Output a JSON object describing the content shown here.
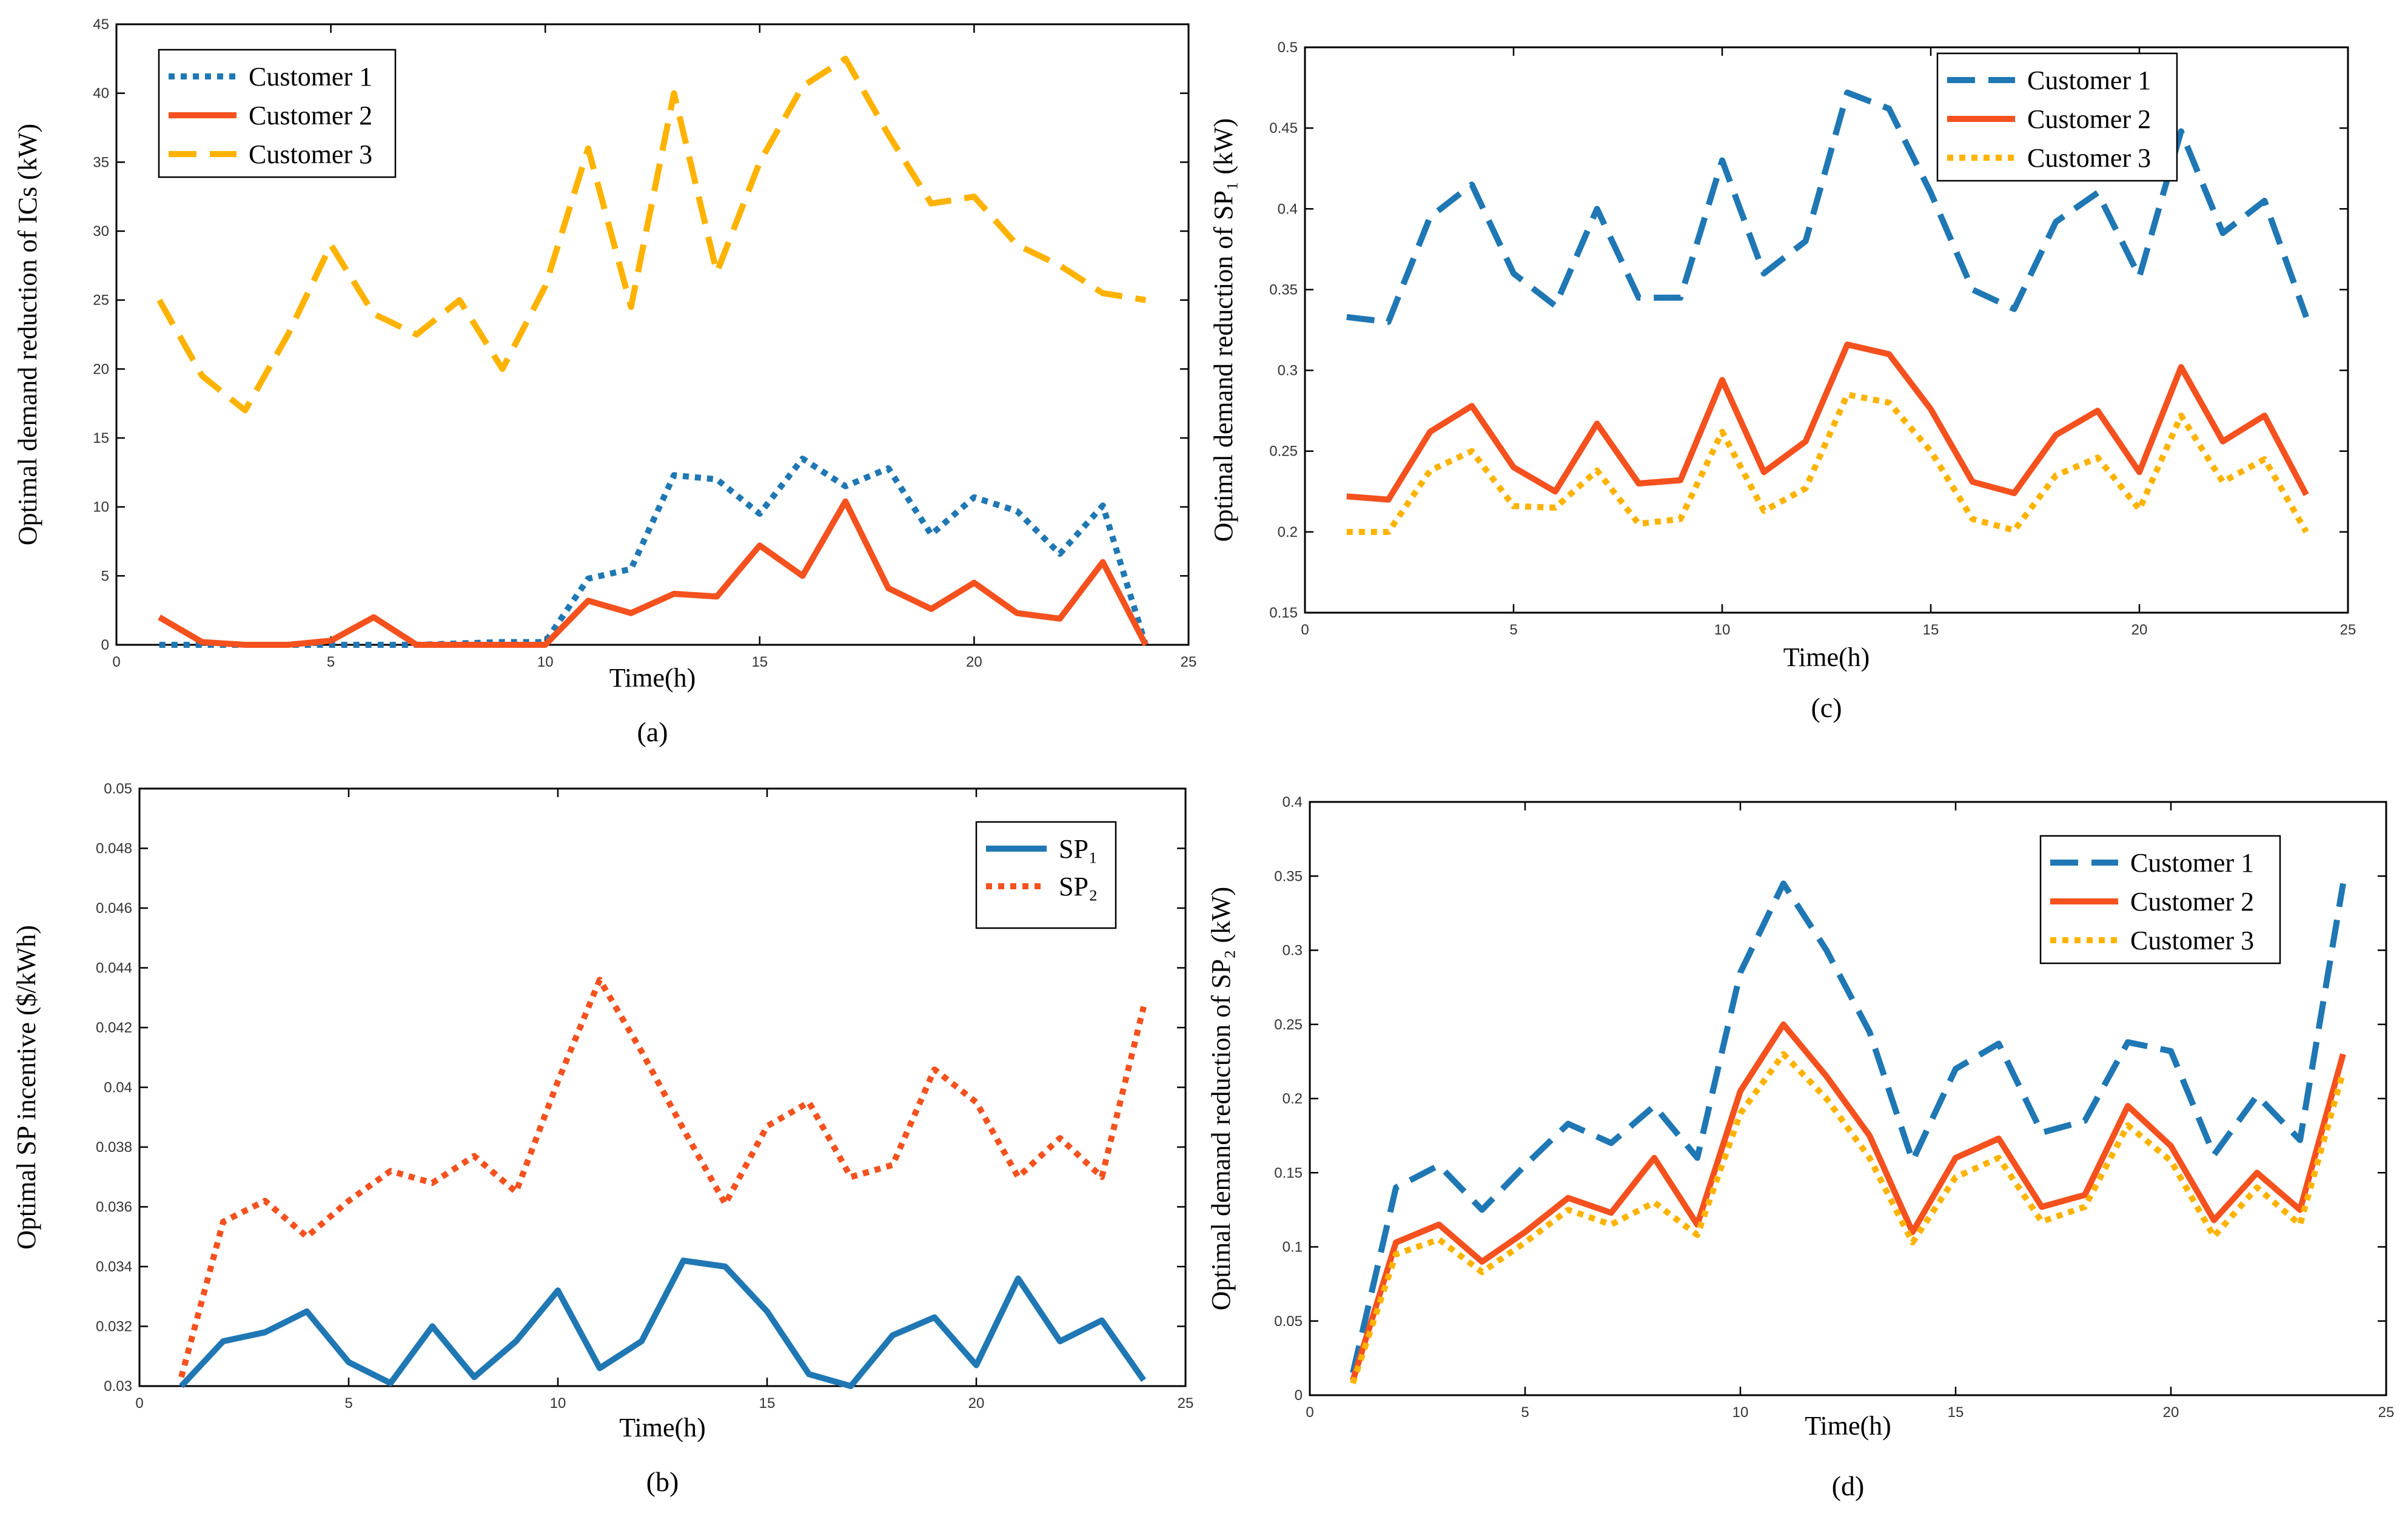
{
  "chart_data": [
    {
      "id": "a",
      "type": "line",
      "caption": "(a)",
      "xlabel": "Time(h)",
      "ylabel": "Optimal demand reduction of ICs (kW)",
      "xlim": [
        0,
        25
      ],
      "ylim": [
        0,
        45
      ],
      "xticks": [
        0,
        5,
        10,
        15,
        20,
        25
      ],
      "yticks": [
        0,
        5,
        10,
        15,
        20,
        25,
        30,
        35,
        40,
        45
      ],
      "legend_position": "top-left",
      "x": [
        1,
        2,
        3,
        4,
        5,
        6,
        7,
        8,
        9,
        10,
        11,
        12,
        13,
        14,
        15,
        16,
        17,
        18,
        19,
        20,
        21,
        22,
        23,
        24
      ],
      "series": [
        {
          "name": "Customer 1",
          "color": "#1f77b4",
          "dash": "dotted",
          "values": [
            0,
            0,
            0,
            0,
            0,
            0,
            0,
            0.1,
            0.2,
            0.2,
            4.8,
            5.5,
            12.3,
            12.0,
            9.5,
            13.5,
            11.5,
            12.8,
            8.0,
            10.7,
            9.7,
            6.6,
            10.1,
            0
          ]
        },
        {
          "name": "Customer 2",
          "color": "#f4511e",
          "dash": "solid",
          "values": [
            2.0,
            0.2,
            0,
            0,
            0.3,
            2.0,
            0,
            0,
            0,
            0,
            3.2,
            2.3,
            3.7,
            3.5,
            7.2,
            5.0,
            10.4,
            4.1,
            2.6,
            4.5,
            2.3,
            1.9,
            6.0,
            0
          ]
        },
        {
          "name": "Customer 3",
          "color": "#ffb300",
          "dash": "dashed",
          "values": [
            25,
            19.5,
            17,
            22.5,
            29,
            24,
            22.5,
            25,
            20,
            26,
            36,
            24.5,
            40,
            27,
            35,
            40.5,
            42.5,
            37,
            32,
            32.5,
            29,
            27.5,
            25.5,
            25
          ]
        }
      ]
    },
    {
      "id": "b",
      "type": "line",
      "caption": "(b)",
      "xlabel": "Time(h)",
      "ylabel": "Optimal SP incentive ($/kWh)",
      "xlim": [
        0,
        25
      ],
      "ylim": [
        0.03,
        0.05
      ],
      "xticks": [
        0,
        5,
        10,
        15,
        20,
        25
      ],
      "yticks": [
        0.03,
        0.032,
        0.034,
        0.036,
        0.038,
        0.04,
        0.042,
        0.044,
        0.046,
        0.048,
        0.05
      ],
      "ytick_labels": [
        "0.03",
        "0.032",
        "0.034",
        "0.036",
        "0.038",
        "0.04",
        "0.042",
        "0.044",
        "0.046",
        "0.048",
        "0.05"
      ],
      "legend_position": "right",
      "x": [
        1,
        2,
        3,
        4,
        5,
        6,
        7,
        8,
        9,
        10,
        11,
        12,
        13,
        14,
        15,
        16,
        17,
        18,
        19,
        20,
        21,
        22,
        23,
        24
      ],
      "series": [
        {
          "name": "SP₁",
          "color": "#1f77b4",
          "dash": "solid",
          "values": [
            0.03,
            0.0315,
            0.0318,
            0.0325,
            0.0308,
            0.0301,
            0.032,
            0.0303,
            0.0315,
            0.0332,
            0.0306,
            0.0315,
            0.0342,
            0.034,
            0.0325,
            0.0304,
            0.03,
            0.0317,
            0.0323,
            0.0307,
            0.0336,
            0.0315,
            0.0322,
            0.0302
          ]
        },
        {
          "name": "SP₂",
          "color": "#f4511e",
          "dash": "dotted",
          "values": [
            0.0303,
            0.0355,
            0.0362,
            0.035,
            0.0362,
            0.0372,
            0.0368,
            0.0377,
            0.0365,
            0.0402,
            0.0436,
            0.0412,
            0.0386,
            0.0361,
            0.0387,
            0.0395,
            0.037,
            0.0374,
            0.0406,
            0.0395,
            0.037,
            0.0383,
            0.037,
            0.0427
          ]
        }
      ]
    },
    {
      "id": "c",
      "type": "line",
      "caption": "(c)",
      "xlabel": "Time(h)",
      "ylabel": "Optimal demand reduction of SP₁ (kW)",
      "xlim": [
        0,
        25
      ],
      "ylim": [
        0.15,
        0.5
      ],
      "xticks": [
        0,
        5,
        10,
        15,
        20,
        25
      ],
      "yticks": [
        0.15,
        0.2,
        0.25,
        0.3,
        0.35,
        0.4,
        0.45,
        0.5
      ],
      "ytick_labels": [
        "0.15",
        "0.2",
        "0.25",
        "0.3",
        "0.35",
        "0.4",
        "0.45",
        "0.5"
      ],
      "legend_position": "top-right",
      "x": [
        1,
        2,
        3,
        4,
        5,
        6,
        7,
        8,
        9,
        10,
        11,
        12,
        13,
        14,
        15,
        16,
        17,
        18,
        19,
        20,
        21,
        22,
        23,
        24
      ],
      "series": [
        {
          "name": "Customer 1",
          "color": "#1f77b4",
          "dash": "dashed",
          "values": [
            0.333,
            0.33,
            0.395,
            0.415,
            0.36,
            0.34,
            0.4,
            0.345,
            0.345,
            0.43,
            0.36,
            0.38,
            0.472,
            0.462,
            0.41,
            0.35,
            0.338,
            0.392,
            0.41,
            0.358,
            0.448,
            0.385,
            0.405,
            0.333
          ]
        },
        {
          "name": "Customer 2",
          "color": "#f4511e",
          "dash": "solid",
          "values": [
            0.222,
            0.22,
            0.262,
            0.278,
            0.24,
            0.225,
            0.267,
            0.23,
            0.232,
            0.294,
            0.237,
            0.256,
            0.316,
            0.31,
            0.276,
            0.231,
            0.224,
            0.26,
            0.275,
            0.237,
            0.302,
            0.256,
            0.272,
            0.223
          ]
        },
        {
          "name": "Customer 3",
          "color": "#ffb300",
          "dash": "dotted",
          "values": [
            0.2,
            0.2,
            0.238,
            0.25,
            0.216,
            0.215,
            0.238,
            0.205,
            0.208,
            0.262,
            0.213,
            0.227,
            0.285,
            0.28,
            0.25,
            0.208,
            0.201,
            0.235,
            0.246,
            0.214,
            0.272,
            0.231,
            0.245,
            0.2
          ]
        }
      ]
    },
    {
      "id": "d",
      "type": "line",
      "caption": "(d)",
      "xlabel": "Time(h)",
      "ylabel": "Optimal demand reduction of SP₂ (kW)",
      "xlim": [
        0,
        25
      ],
      "ylim": [
        0,
        0.4
      ],
      "xticks": [
        0,
        5,
        10,
        15,
        20,
        25
      ],
      "yticks": [
        0,
        0.05,
        0.1,
        0.15,
        0.2,
        0.25,
        0.3,
        0.35,
        0.4
      ],
      "ytick_labels": [
        "0",
        "0.05",
        "0.1",
        "0.15",
        "0.2",
        "0.25",
        "0.3",
        "0.35",
        "0.4"
      ],
      "legend_position": "top-right",
      "x": [
        1,
        2,
        3,
        4,
        5,
        6,
        7,
        8,
        9,
        10,
        11,
        12,
        13,
        14,
        15,
        16,
        17,
        18,
        19,
        20,
        21,
        22,
        23,
        24
      ],
      "series": [
        {
          "name": "Customer 1",
          "color": "#1f77b4",
          "dash": "dashed",
          "values": [
            0.015,
            0.14,
            0.155,
            0.125,
            0.155,
            0.183,
            0.17,
            0.195,
            0.16,
            0.285,
            0.345,
            0.3,
            0.245,
            0.158,
            0.22,
            0.237,
            0.177,
            0.185,
            0.238,
            0.232,
            0.162,
            0.202,
            0.172,
            0.345
          ]
        },
        {
          "name": "Customer 2",
          "color": "#f4511e",
          "dash": "solid",
          "values": [
            0.01,
            0.103,
            0.115,
            0.09,
            0.11,
            0.133,
            0.123,
            0.16,
            0.115,
            0.205,
            0.25,
            0.215,
            0.175,
            0.11,
            0.16,
            0.173,
            0.127,
            0.135,
            0.195,
            0.168,
            0.118,
            0.15,
            0.125,
            0.23
          ]
        },
        {
          "name": "Customer 3",
          "color": "#ffb300",
          "dash": "dotted",
          "values": [
            0.008,
            0.095,
            0.105,
            0.083,
            0.103,
            0.125,
            0.115,
            0.13,
            0.108,
            0.19,
            0.23,
            0.2,
            0.16,
            0.103,
            0.147,
            0.16,
            0.117,
            0.127,
            0.182,
            0.158,
            0.107,
            0.14,
            0.115,
            0.218
          ]
        }
      ]
    }
  ]
}
